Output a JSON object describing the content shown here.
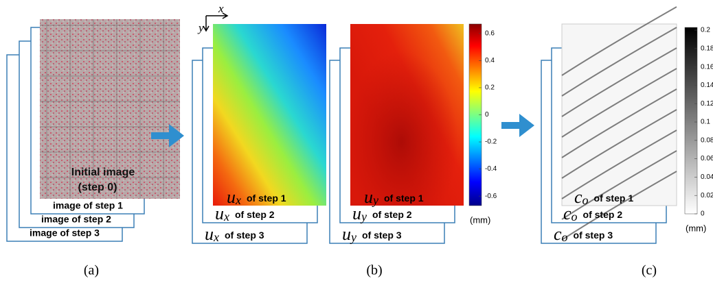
{
  "panels": [
    {
      "caption": "(a)",
      "image_label": [
        "Initial image",
        "(step 0)"
      ],
      "steps": [
        "image of step 1",
        "image of step 2",
        "image of step 3"
      ]
    },
    {
      "caption": "(b)",
      "axes": [
        "x",
        "y"
      ],
      "maps": [
        {
          "symbol": "u",
          "subscript": "x",
          "steps": [
            "of step 1",
            "of step 2",
            "of step 3"
          ]
        },
        {
          "symbol": "u",
          "subscript": "y",
          "steps": [
            "of step 1",
            "of step 2",
            "of step 3"
          ]
        }
      ],
      "colorbar": {
        "ticks": [
          0.6,
          0.4,
          0.2,
          0,
          -0.2,
          -0.4,
          -0.6
        ],
        "range": [
          -0.67,
          0.67
        ],
        "unit": "(mm)"
      }
    },
    {
      "caption": "(c)",
      "maps": [
        {
          "symbol": "c",
          "subscript": "o",
          "steps": [
            "of step 1",
            "of step 2",
            "of step 3"
          ]
        }
      ],
      "colorbar": {
        "ticks": [
          0.2,
          0.18,
          0.16,
          0.14,
          0.12,
          0.1,
          0.08,
          0.06,
          0.04,
          0.02,
          0
        ],
        "range": [
          0,
          0.203
        ],
        "unit": "(mm)"
      }
    }
  ]
}
